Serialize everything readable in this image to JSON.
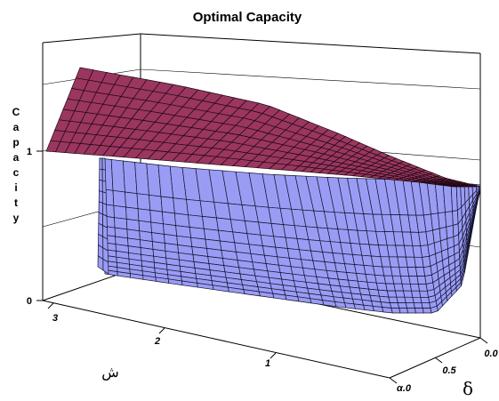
{
  "chart_data": {
    "type": "surface3d",
    "title": "Optimal Capacity",
    "zlabel": "Capacity",
    "xlabel": "ش",
    "ylabel": "δ",
    "x_ticks": [
      "3",
      "2",
      "1"
    ],
    "y_ticks": [
      "α.0",
      "0.5",
      "0.0"
    ],
    "z_ticks": [
      "0",
      "1"
    ],
    "grid": true,
    "series": [
      {
        "color": "#9a3660",
        "mesh_color": "#1e0812"
      },
      {
        "color": "#9a9cf4",
        "mesh_color": "#141430"
      }
    ]
  }
}
